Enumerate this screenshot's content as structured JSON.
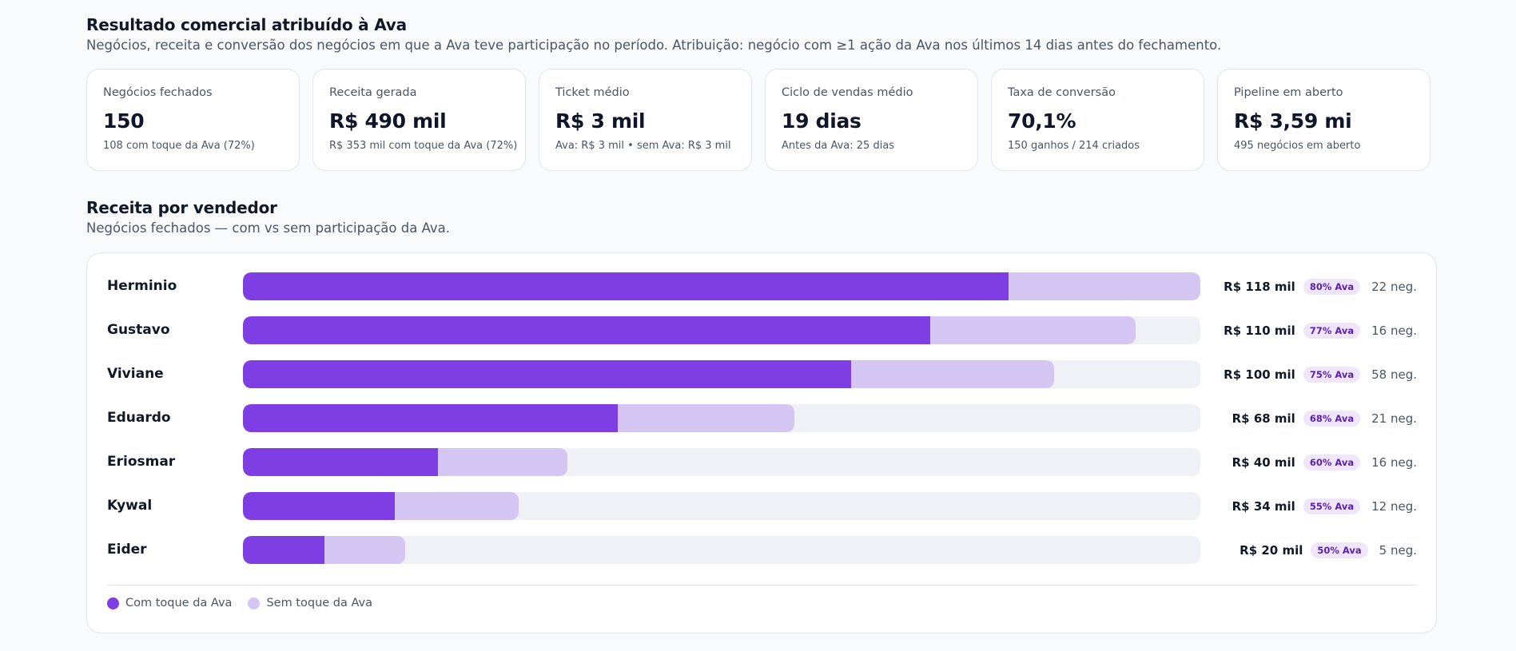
{
  "colors": {
    "with_ava": "#7e3ee3",
    "without_ava": "#d5c5f3",
    "track": "#eff1f6",
    "badge_bg": "#efe6fb",
    "badge_text": "#5b21b6"
  },
  "summary": {
    "title": "Resultado comercial atribuído à Ava",
    "subtitle": "Negócios, receita e conversão dos negócios em que a Ava teve participação no período. Atribuição: negócio com ≥1 ação da Ava nos últimos 14 dias antes do fechamento."
  },
  "kpis": [
    {
      "label": "Negócios fechados",
      "value": "150",
      "note": "108 com toque da Ava (72%)"
    },
    {
      "label": "Receita gerada",
      "value": "R$ 490 mil",
      "note": "R$ 353 mil com toque da Ava (72%)"
    },
    {
      "label": "Ticket médio",
      "value": "R$ 3 mil",
      "note": "Ava: R$ 3 mil • sem Ava: R$ 3 mil"
    },
    {
      "label": "Ciclo de vendas médio",
      "value": "19 dias",
      "note": "Antes da Ava: 25 dias"
    },
    {
      "label": "Taxa de conversão",
      "value": "70,1%",
      "note": "150 ganhos / 214 criados"
    },
    {
      "label": "Pipeline em aberto",
      "value": "R$ 3,59 mi",
      "note": "495 negócios em aberto"
    }
  ],
  "revenue_section": {
    "title": "Receita por vendedor",
    "subtitle": "Negócios fechados — com vs sem participação da Ava."
  },
  "chart_data": {
    "type": "bar",
    "orientation": "horizontal",
    "stacked": true,
    "xlim": [
      0,
      118
    ],
    "categories": [
      "Herminio",
      "Gustavo",
      "Viviane",
      "Eduardo",
      "Eriosmar",
      "Kywal",
      "Eider"
    ],
    "series": [
      {
        "name": "Com toque da Ava",
        "values": [
          94.4,
          84.7,
          75,
          46.2,
          24,
          18.7,
          10
        ]
      },
      {
        "name": "Sem toque da Ava",
        "values": [
          23.6,
          25.3,
          25,
          21.8,
          16,
          15.3,
          10
        ]
      }
    ],
    "totals_label": [
      "R$ 118 mil",
      "R$ 110 mil",
      "R$ 100 mil",
      "R$ 68 mil",
      "R$ 40 mil",
      "R$ 34 mil",
      "R$ 20 mil"
    ],
    "ava_share_label": [
      "80% Ava",
      "77% Ava",
      "75% Ava",
      "68% Ava",
      "60% Ava",
      "55% Ava",
      "50% Ava"
    ],
    "deals_label": [
      "22 neg.",
      "16 neg.",
      "58 neg.",
      "21 neg.",
      "16 neg.",
      "12 neg.",
      "5 neg."
    ],
    "legend": [
      "Com toque da Ava",
      "Sem toque da Ava"
    ],
    "legend_position": "bottom-left"
  }
}
